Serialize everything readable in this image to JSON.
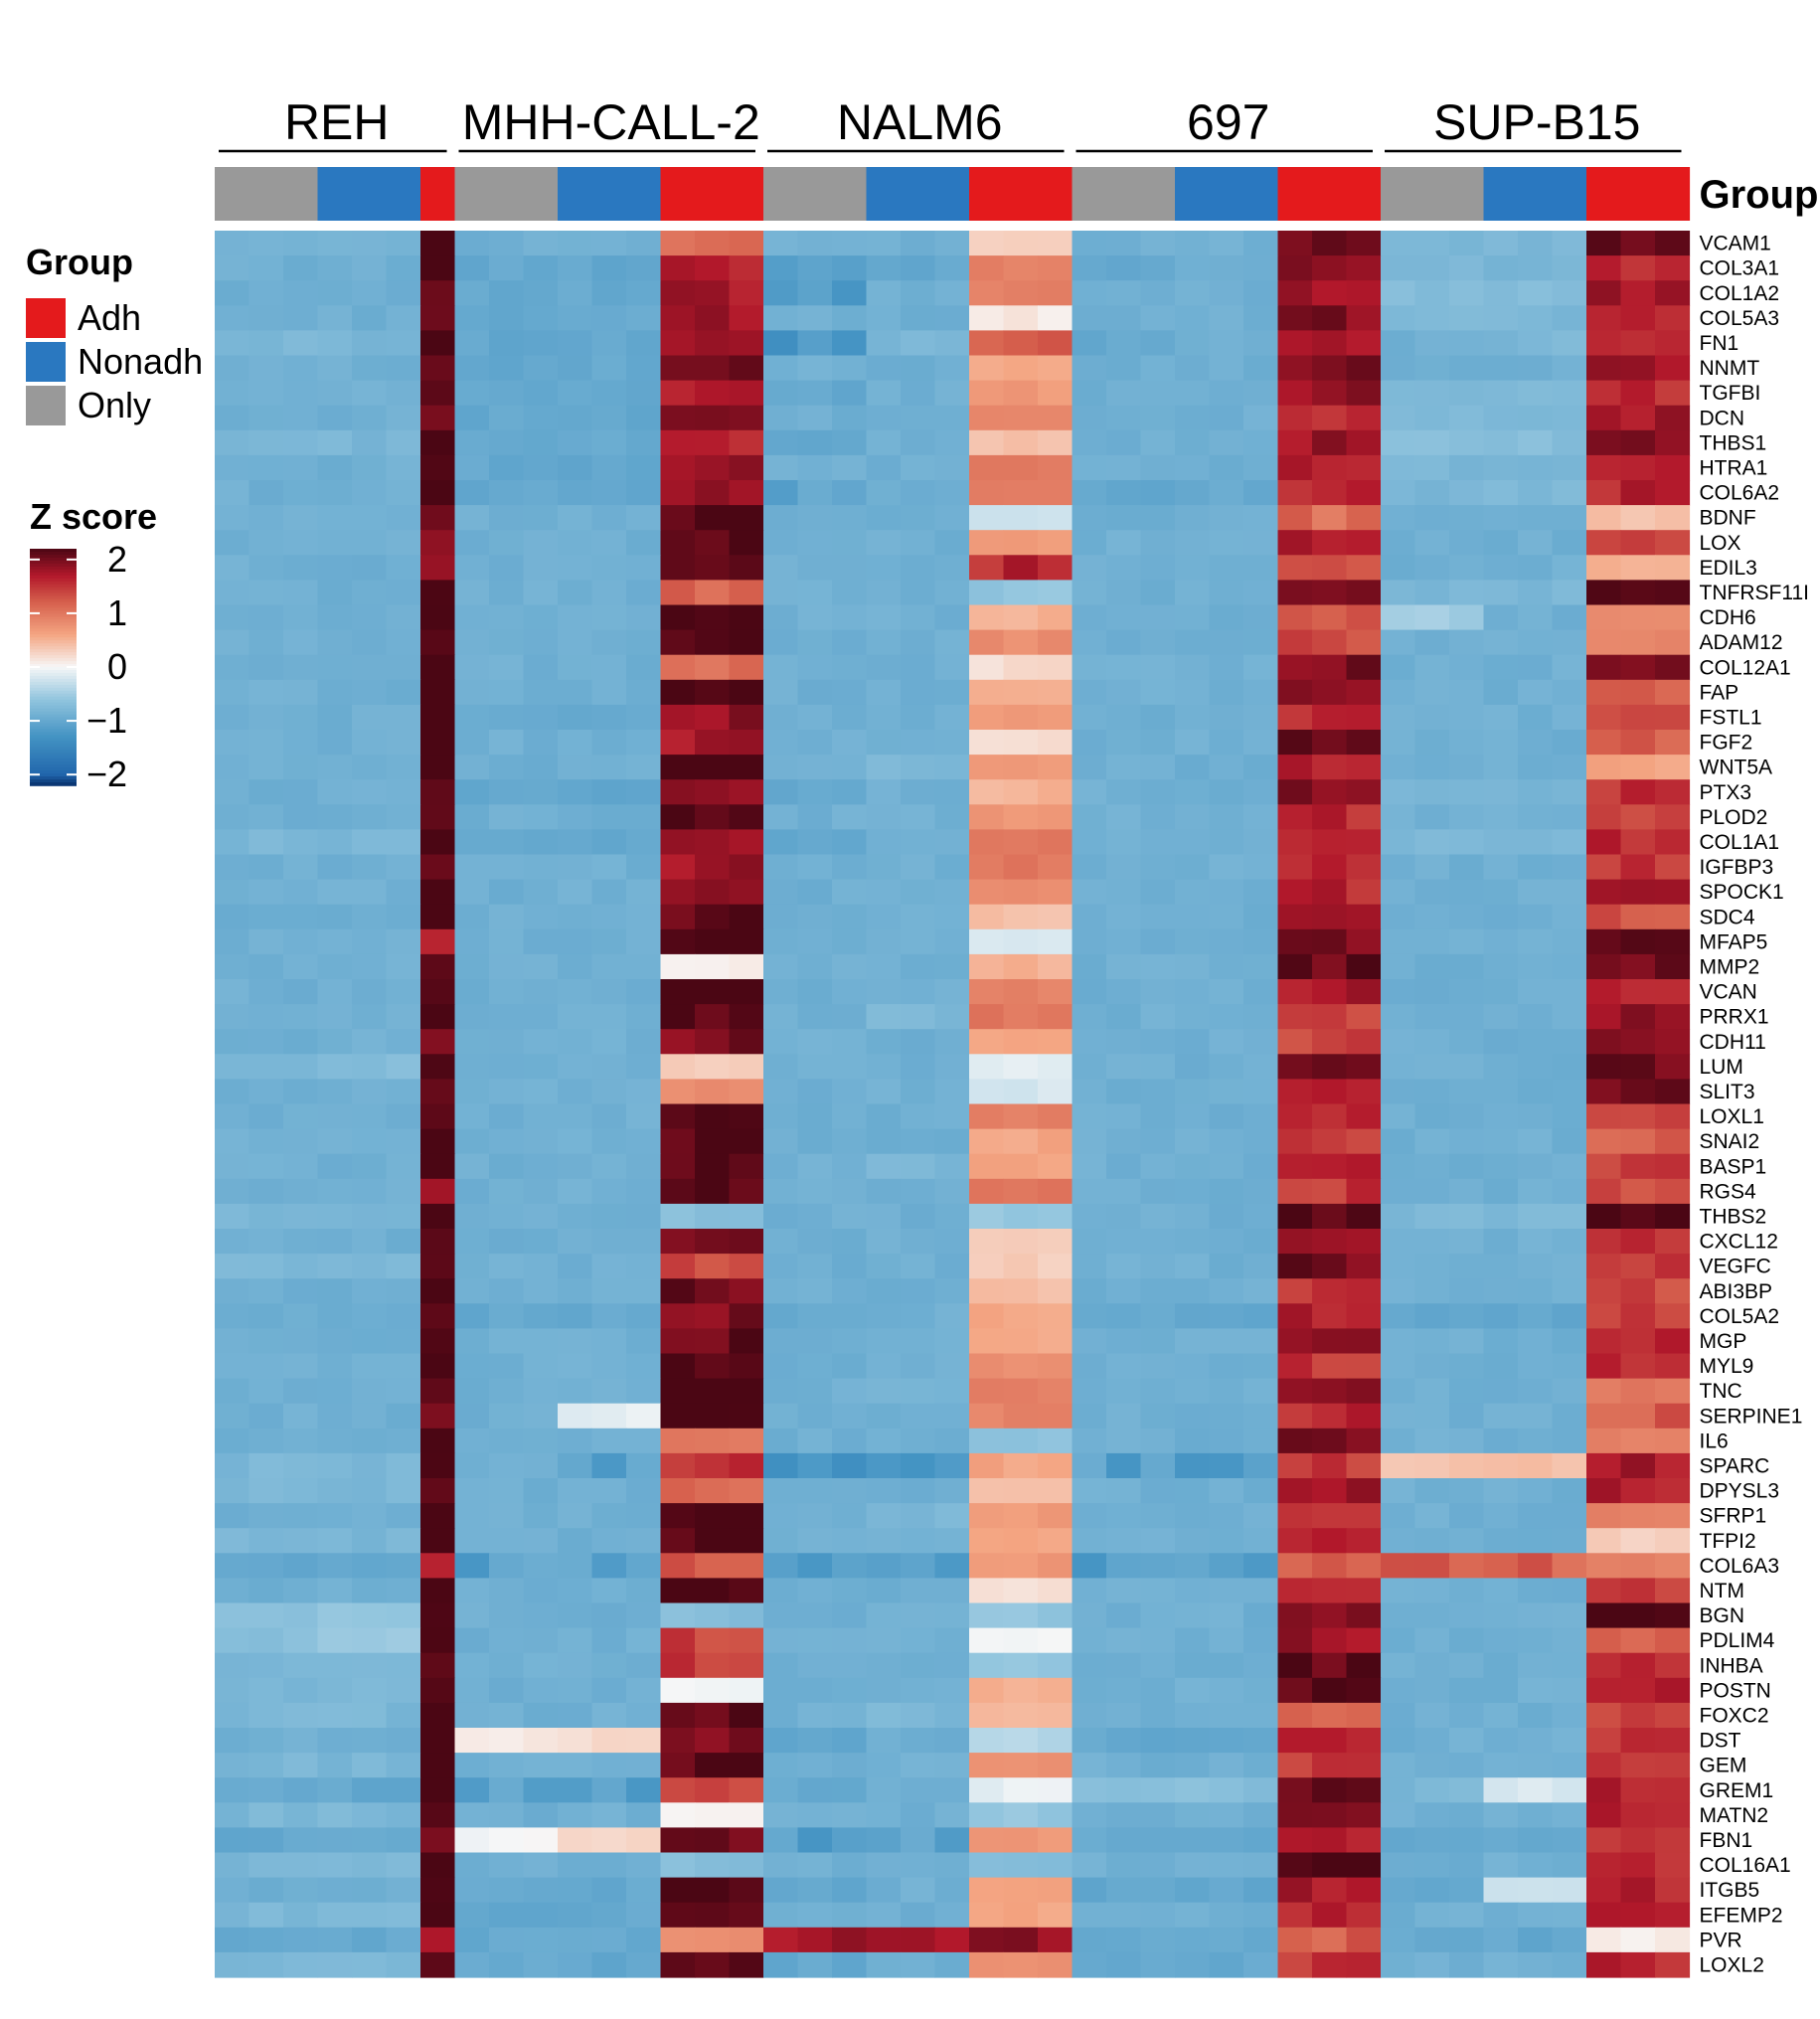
{
  "chart_data": {
    "type": "heatmap",
    "cell_lines": [
      "REH",
      "MHH-CALL-2",
      "NALM6",
      "697",
      "SUP-B15"
    ],
    "column_annotation_title": "Group",
    "column_groups": {
      "REH": [
        "Only",
        "Only",
        "Only",
        "Nonadh",
        "Nonadh",
        "Nonadh",
        "Adh"
      ],
      "MHH-CALL-2": [
        "Only",
        "Only",
        "Only",
        "Nonadh",
        "Nonadh",
        "Nonadh",
        "Adh",
        "Adh",
        "Adh"
      ],
      "NALM6": [
        "Only",
        "Only",
        "Only",
        "Nonadh",
        "Nonadh",
        "Nonadh",
        "Adh",
        "Adh",
        "Adh"
      ],
      "697": [
        "Only",
        "Only",
        "Only",
        "Nonadh",
        "Nonadh",
        "Nonadh",
        "Adh",
        "Adh",
        "Adh"
      ],
      "SUP-B15": [
        "Only",
        "Only",
        "Only",
        "Nonadh",
        "Nonadh",
        "Nonadh",
        "Adh",
        "Adh",
        "Adh"
      ]
    },
    "legend_group": {
      "title": "Group",
      "items": [
        {
          "label": "Adh",
          "color": "#e41a1c"
        },
        {
          "label": "Nonadh",
          "color": "#2a78c0"
        },
        {
          "label": "Only",
          "color": "#999999"
        }
      ]
    },
    "legend_zscore": {
      "title": "Z score",
      "ticks": [
        "2",
        "1",
        "0",
        "−1",
        "−2"
      ],
      "tick_values": [
        2,
        1,
        0,
        -1,
        -2
      ],
      "range": [
        -2.2,
        2.2
      ]
    },
    "genes": [
      "VCAM1",
      "COL3A1",
      "COL1A2",
      "COL5A3",
      "FN1",
      "NNMT",
      "TGFBI",
      "DCN",
      "THBS1",
      "HTRA1",
      "COL6A2",
      "BDNF",
      "LOX",
      "EDIL3",
      "TNFRSF11I",
      "CDH6",
      "ADAM12",
      "COL12A1",
      "FAP",
      "FSTL1",
      "FGF2",
      "WNT5A",
      "PTX3",
      "PLOD2",
      "COL1A1",
      "IGFBP3",
      "SPOCK1",
      "SDC4",
      "MFAP5",
      "MMP2",
      "VCAN",
      "PRRX1",
      "CDH11",
      "LUM",
      "SLIT3",
      "LOXL1",
      "SNAI2",
      "BASP1",
      "RGS4",
      "THBS2",
      "CXCL12",
      "VEGFC",
      "ABI3BP",
      "COL5A2",
      "MGP",
      "MYL9",
      "TNC",
      "SERPINE1",
      "IL6",
      "SPARC",
      "DPYSL3",
      "SFRP1",
      "TFPI2",
      "COL6A3",
      "NTM",
      "BGN",
      "PDLIM4",
      "INHBA",
      "POSTN",
      "FOXC2",
      "DST",
      "GEM",
      "GREM1",
      "MATN2",
      "FBN1",
      "COL16A1",
      "ITGB5",
      "EFEMP2",
      "PVR",
      "LOXL2"
    ],
    "values_note": "Approximate per-gene z-scores by block (Only, Nonadh, Adh) for each cell line; each block spans 3 columns (REH Adh spans 1).",
    "values": {
      "REH": {
        "Only": [
          -0.8,
          -0.9,
          -0.9,
          -0.9,
          -0.8,
          -0.9,
          -0.9,
          -0.9,
          -0.8,
          -0.9,
          -0.9,
          -0.9,
          -0.9,
          -0.9,
          -0.9,
          -0.9,
          -0.9,
          -0.9,
          -0.9,
          -0.9,
          -0.9,
          -0.9,
          -0.9,
          -0.9,
          -0.8,
          -0.9,
          -0.9,
          -0.9,
          -0.9,
          -0.9,
          -0.9,
          -0.9,
          -0.9,
          -0.8,
          -0.9,
          -0.9,
          -0.9,
          -0.9,
          -0.9,
          -0.8,
          -0.9,
          -0.8,
          -0.9,
          -0.9,
          -0.9,
          -0.9,
          -0.9,
          -0.9,
          -0.9,
          -0.8,
          -0.8,
          -0.9,
          -0.8,
          -1.0,
          -0.9,
          -0.7,
          -0.7,
          -0.8,
          -0.8,
          -0.8,
          -0.9,
          -0.8,
          -1.0,
          -0.8,
          -1.0,
          -0.8,
          -0.9,
          -0.8,
          -1.0,
          -0.8
        ],
        "Nonadh": [
          -0.8,
          -0.9,
          -0.9,
          -0.9,
          -0.8,
          -0.9,
          -0.9,
          -0.9,
          -0.8,
          -0.9,
          -0.9,
          -0.9,
          -0.9,
          -0.9,
          -0.9,
          -0.9,
          -0.9,
          -0.9,
          -0.9,
          -0.9,
          -0.9,
          -0.9,
          -0.9,
          -0.9,
          -0.8,
          -0.9,
          -0.9,
          -0.9,
          -0.9,
          -0.9,
          -0.9,
          -0.9,
          -0.9,
          -0.7,
          -0.9,
          -0.9,
          -0.9,
          -0.9,
          -0.9,
          -0.8,
          -0.9,
          -0.8,
          -0.9,
          -0.9,
          -0.9,
          -0.9,
          -0.9,
          -0.9,
          -0.9,
          -0.8,
          -0.8,
          -0.9,
          -0.8,
          -1.0,
          -0.9,
          -0.6,
          -0.5,
          -0.8,
          -0.8,
          -0.8,
          -0.9,
          -0.8,
          -1.0,
          -0.8,
          -1.0,
          -0.8,
          -0.9,
          -0.8,
          -1.0,
          -0.8
        ],
        "Adh": [
          2.2,
          2.2,
          2.2,
          2.2,
          2.2,
          2.2,
          2.2,
          2.1,
          2.2,
          2.2,
          2.2,
          1.9,
          1.8,
          1.7,
          2.2,
          2.2,
          2.2,
          2.2,
          2.2,
          2.1,
          2.2,
          2.2,
          2.2,
          2.2,
          2.2,
          2.2,
          2.2,
          2.2,
          1.5,
          2.2,
          2.2,
          2.2,
          1.9,
          2.2,
          2.2,
          2.2,
          2.2,
          2.2,
          1.9,
          2.2,
          2.2,
          2.2,
          2.2,
          2.2,
          2.0,
          2.2,
          2.2,
          2.0,
          2.2,
          2.2,
          2.2,
          2.2,
          2.2,
          1.6,
          2.2,
          2.2,
          2.2,
          2.2,
          2.2,
          2.2,
          2.2,
          2.2,
          2.2,
          2.2,
          2.1,
          2.2,
          2.2,
          2.2,
          1.7,
          2.2
        ]
      },
      "MHH-CALL-2": {
        "Only": [
          -0.9,
          -1.0,
          -1.0,
          -1.0,
          -1.0,
          -1.0,
          -1.0,
          -1.0,
          -1.0,
          -1.0,
          -1.0,
          -0.9,
          -0.9,
          -0.9,
          -0.9,
          -0.9,
          -0.9,
          -0.9,
          -0.9,
          -1.0,
          -0.9,
          -0.9,
          -1.0,
          -0.9,
          -1.0,
          -0.9,
          -0.9,
          -0.9,
          -0.9,
          -0.9,
          -0.9,
          -0.9,
          -0.9,
          -0.9,
          -0.9,
          -0.9,
          -0.9,
          -0.9,
          -0.9,
          -0.9,
          -0.9,
          -0.9,
          -0.9,
          -1.0,
          -0.9,
          -0.9,
          -0.9,
          -0.9,
          -0.9,
          -0.9,
          -0.9,
          -0.9,
          -0.9,
          -1.1,
          -0.9,
          -0.9,
          -0.9,
          -0.9,
          -0.9,
          -0.9,
          0.1,
          -0.9,
          -1.1,
          -0.9,
          0.0,
          -0.9,
          -1.0,
          -1.0,
          -1.0,
          -1.0
        ],
        "Nonadh": [
          -0.9,
          -1.0,
          -1.0,
          -1.0,
          -1.0,
          -1.0,
          -1.0,
          -1.0,
          -1.0,
          -1.0,
          -1.0,
          -0.9,
          -0.9,
          -0.9,
          -0.9,
          -0.9,
          -0.9,
          -0.9,
          -0.9,
          -1.0,
          -0.9,
          -0.9,
          -1.0,
          -0.9,
          -1.0,
          -0.9,
          -0.9,
          -0.9,
          -0.9,
          -0.9,
          -0.9,
          -0.9,
          -0.9,
          -0.9,
          -0.9,
          -0.9,
          -0.9,
          -0.9,
          -0.9,
          -0.9,
          -0.9,
          -0.9,
          -0.9,
          -1.0,
          -0.9,
          -0.9,
          -0.9,
          -0.1,
          -0.9,
          -1.1,
          -0.9,
          -0.9,
          -0.9,
          -1.1,
          -0.9,
          -0.9,
          -0.9,
          -0.9,
          -0.9,
          -0.9,
          0.2,
          -0.9,
          -1.1,
          -0.9,
          0.2,
          -0.9,
          -1.0,
          -1.0,
          -1.0,
          -1.0
        ],
        "Adh": [
          1.1,
          1.7,
          1.7,
          1.8,
          1.8,
          2.0,
          1.7,
          2.1,
          1.7,
          1.9,
          1.9,
          2.2,
          2.2,
          2.2,
          1.2,
          2.1,
          2.2,
          1.1,
          2.2,
          1.9,
          1.8,
          2.2,
          1.8,
          2.2,
          1.8,
          1.8,
          1.9,
          2.1,
          2.2,
          0.1,
          2.2,
          2.2,
          2.0,
          0.3,
          0.8,
          2.2,
          2.2,
          2.2,
          2.2,
          -0.7,
          2.1,
          1.4,
          2.0,
          1.9,
          2.1,
          2.2,
          2.2,
          2.2,
          1.0,
          1.6,
          1.2,
          2.2,
          2.2,
          1.3,
          2.2,
          -0.7,
          1.4,
          1.5,
          0.0,
          2.1,
          2.0,
          2.1,
          1.4,
          0.0,
          2.0,
          -0.7,
          2.2,
          2.2,
          0.8,
          2.2
        ]
      },
      "NALM6": {
        "Only": [
          -0.9,
          -1.1,
          -1.2,
          -0.9,
          -1.3,
          -0.9,
          -1.0,
          -0.9,
          -1.0,
          -0.9,
          -1.1,
          -0.9,
          -0.9,
          -0.9,
          -0.9,
          -0.9,
          -0.9,
          -0.9,
          -0.9,
          -0.9,
          -0.9,
          -0.9,
          -1.0,
          -0.9,
          -1.0,
          -0.9,
          -0.9,
          -0.9,
          -0.9,
          -0.9,
          -0.9,
          -0.9,
          -0.9,
          -0.9,
          -0.9,
          -0.9,
          -0.9,
          -0.9,
          -0.9,
          -0.9,
          -0.9,
          -0.9,
          -0.9,
          -1.0,
          -0.9,
          -0.9,
          -0.9,
          -0.9,
          -0.9,
          -1.3,
          -0.9,
          -0.9,
          -0.9,
          -1.2,
          -0.9,
          -0.9,
          -0.9,
          -0.9,
          -0.9,
          -0.9,
          -1.0,
          -0.9,
          -1.0,
          -0.9,
          -1.1,
          -0.9,
          -1.0,
          -0.9,
          1.8,
          -1.0
        ],
        "Nonadh": [
          -0.9,
          -1.0,
          -0.9,
          -0.9,
          -0.8,
          -0.9,
          -0.9,
          -0.9,
          -0.9,
          -0.9,
          -0.9,
          -0.9,
          -0.9,
          -0.9,
          -0.9,
          -0.9,
          -0.9,
          -0.9,
          -0.9,
          -0.9,
          -0.9,
          -0.8,
          -0.9,
          -0.9,
          -0.9,
          -0.9,
          -0.9,
          -0.9,
          -0.9,
          -0.9,
          -0.9,
          -0.8,
          -0.9,
          -0.9,
          -0.9,
          -0.9,
          -0.9,
          -0.8,
          -0.9,
          -0.9,
          -0.9,
          -0.9,
          -0.9,
          -0.9,
          -0.9,
          -0.9,
          -0.8,
          -0.9,
          -0.9,
          -1.2,
          -0.9,
          -0.8,
          -0.9,
          -1.1,
          -0.9,
          -0.9,
          -0.9,
          -0.9,
          -0.9,
          -0.8,
          -0.9,
          -0.9,
          -0.9,
          -0.9,
          -1.1,
          -0.9,
          -0.9,
          -0.9,
          1.8,
          -0.9
        ],
        "Adh": [
          0.3,
          0.9,
          0.9,
          0.1,
          1.3,
          0.6,
          0.7,
          0.9,
          0.4,
          1.0,
          1.0,
          -0.3,
          0.7,
          1.6,
          -0.6,
          0.5,
          0.8,
          0.2,
          0.5,
          0.7,
          0.2,
          0.7,
          0.5,
          0.7,
          1.0,
          1.0,
          0.8,
          0.4,
          -0.2,
          0.5,
          0.9,
          1.0,
          0.6,
          -0.1,
          -0.2,
          0.9,
          0.6,
          0.6,
          1.0,
          -0.6,
          0.3,
          0.3,
          0.4,
          0.6,
          0.6,
          0.8,
          0.9,
          0.9,
          -0.6,
          0.6,
          0.4,
          0.7,
          0.6,
          0.7,
          0.2,
          -0.6,
          0.0,
          -0.6,
          0.5,
          0.5,
          -0.4,
          0.8,
          -0.1,
          -0.6,
          0.7,
          -0.7,
          0.6,
          0.6,
          1.9,
          0.8
        ]
      },
      "697": {
        "Only": [
          -0.9,
          -1.0,
          -0.9,
          -0.9,
          -1.0,
          -0.9,
          -0.9,
          -0.9,
          -0.9,
          -0.9,
          -1.0,
          -0.9,
          -0.9,
          -0.9,
          -0.9,
          -0.9,
          -0.9,
          -0.9,
          -0.9,
          -0.9,
          -0.9,
          -0.9,
          -0.9,
          -0.9,
          -0.9,
          -0.9,
          -0.9,
          -0.9,
          -0.9,
          -0.9,
          -0.9,
          -0.9,
          -0.9,
          -0.9,
          -0.9,
          -0.9,
          -0.9,
          -0.9,
          -0.9,
          -0.9,
          -0.9,
          -0.9,
          -0.9,
          -1.0,
          -0.9,
          -0.9,
          -0.9,
          -0.9,
          -0.9,
          -1.1,
          -0.9,
          -0.9,
          -0.9,
          -1.1,
          -0.9,
          -0.9,
          -0.9,
          -0.9,
          -0.9,
          -0.9,
          -1.0,
          -0.9,
          -0.7,
          -0.9,
          -1.0,
          -0.9,
          -1.0,
          -0.9,
          -1.0,
          -1.0
        ],
        "Nonadh": [
          -0.9,
          -0.9,
          -0.9,
          -0.9,
          -0.9,
          -0.9,
          -0.9,
          -0.9,
          -0.9,
          -0.9,
          -1.0,
          -0.9,
          -0.9,
          -0.9,
          -0.9,
          -0.9,
          -0.9,
          -0.9,
          -0.9,
          -0.9,
          -0.9,
          -0.9,
          -0.9,
          -0.9,
          -0.9,
          -0.9,
          -0.9,
          -0.9,
          -0.9,
          -0.9,
          -0.9,
          -0.9,
          -0.9,
          -0.9,
          -0.9,
          -0.9,
          -0.9,
          -0.9,
          -0.9,
          -0.9,
          -0.9,
          -0.9,
          -0.9,
          -1.0,
          -0.9,
          -0.9,
          -0.9,
          -0.9,
          -0.9,
          -1.1,
          -0.9,
          -0.9,
          -0.9,
          -1.1,
          -0.9,
          -0.9,
          -0.9,
          -0.9,
          -0.9,
          -0.9,
          -1.0,
          -0.9,
          -0.7,
          -0.9,
          -1.0,
          -0.9,
          -1.0,
          -0.9,
          -1.0,
          -1.0
        ],
        "Adh": [
          2.0,
          1.8,
          1.8,
          1.9,
          1.7,
          1.9,
          1.9,
          1.6,
          1.8,
          1.6,
          1.6,
          1.1,
          1.7,
          1.2,
          2.1,
          1.3,
          1.3,
          2.0,
          1.8,
          1.6,
          2.1,
          1.6,
          1.9,
          1.6,
          1.7,
          1.6,
          1.6,
          1.7,
          1.9,
          2.1,
          1.7,
          1.4,
          1.4,
          2.0,
          1.8,
          1.5,
          1.5,
          1.6,
          1.5,
          2.1,
          1.8,
          2.0,
          1.5,
          1.7,
          1.8,
          1.5,
          1.9,
          1.6,
          2.0,
          1.5,
          1.8,
          1.5,
          1.6,
          1.3,
          1.5,
          2.0,
          1.8,
          2.1,
          2.1,
          1.1,
          1.7,
          1.5,
          2.0,
          2.0,
          1.7,
          2.1,
          1.7,
          1.6,
          1.2,
          1.5
        ]
      },
      "SUP-B15": {
        "Only": [
          -0.8,
          -0.8,
          -0.7,
          -0.8,
          -0.9,
          -0.9,
          -0.8,
          -0.8,
          -0.7,
          -0.8,
          -0.8,
          -0.9,
          -0.9,
          -0.9,
          -0.8,
          -0.5,
          -0.9,
          -0.9,
          -0.9,
          -0.9,
          -0.9,
          -0.9,
          -0.8,
          -0.9,
          -0.8,
          -0.9,
          -0.9,
          -0.9,
          -0.9,
          -0.9,
          -0.9,
          -0.9,
          -0.9,
          -0.9,
          -0.9,
          -0.9,
          -0.9,
          -0.9,
          -0.9,
          -0.8,
          -0.9,
          -0.9,
          -0.9,
          -1.0,
          -0.9,
          -0.9,
          -0.9,
          -0.9,
          -0.9,
          0.4,
          -0.9,
          -0.9,
          -0.9,
          1.2,
          -0.9,
          -0.9,
          -0.9,
          -0.9,
          -0.9,
          -0.9,
          -0.9,
          -0.9,
          -0.8,
          -0.9,
          -1.0,
          -0.9,
          -1.0,
          -0.9,
          -1.0,
          -0.9
        ],
        "Nonadh": [
          -0.8,
          -0.8,
          -0.7,
          -0.8,
          -0.8,
          -0.9,
          -0.8,
          -0.8,
          -0.7,
          -0.8,
          -0.8,
          -0.9,
          -0.9,
          -0.9,
          -0.8,
          -0.9,
          -0.9,
          -0.9,
          -0.9,
          -0.9,
          -0.9,
          -0.9,
          -0.8,
          -0.9,
          -0.8,
          -0.9,
          -0.9,
          -0.9,
          -0.9,
          -0.9,
          -0.9,
          -0.9,
          -0.9,
          -0.9,
          -0.9,
          -0.9,
          -0.9,
          -0.9,
          -0.9,
          -0.8,
          -0.9,
          -0.9,
          -0.9,
          -1.0,
          -0.9,
          -0.9,
          -0.9,
          -0.9,
          -0.9,
          0.4,
          -0.9,
          -0.9,
          -0.9,
          1.2,
          -0.9,
          -0.9,
          -0.9,
          -0.9,
          -0.9,
          -0.9,
          -0.9,
          -0.9,
          -0.2,
          -0.9,
          -1.0,
          -0.9,
          -0.3,
          -0.9,
          -1.0,
          -0.9
        ],
        "Adh": [
          2.1,
          1.6,
          1.7,
          1.6,
          1.7,
          1.7,
          1.6,
          1.7,
          1.9,
          1.6,
          1.6,
          0.4,
          1.3,
          0.5,
          2.2,
          0.8,
          0.9,
          2.1,
          1.1,
          1.4,
          1.2,
          0.6,
          1.5,
          1.4,
          1.6,
          1.5,
          1.8,
          1.3,
          2.0,
          2.0,
          1.6,
          1.8,
          1.9,
          2.0,
          2.1,
          1.3,
          1.2,
          1.5,
          1.3,
          2.1,
          1.5,
          1.5,
          1.4,
          1.5,
          1.7,
          1.6,
          1.0,
          1.2,
          0.9,
          1.7,
          1.7,
          0.9,
          0.3,
          0.9,
          1.4,
          2.2,
          1.1,
          1.6,
          1.8,
          1.3,
          1.5,
          1.6,
          1.6,
          1.6,
          1.6,
          1.6,
          1.6,
          1.6,
          0.1,
          1.6
        ]
      }
    }
  }
}
